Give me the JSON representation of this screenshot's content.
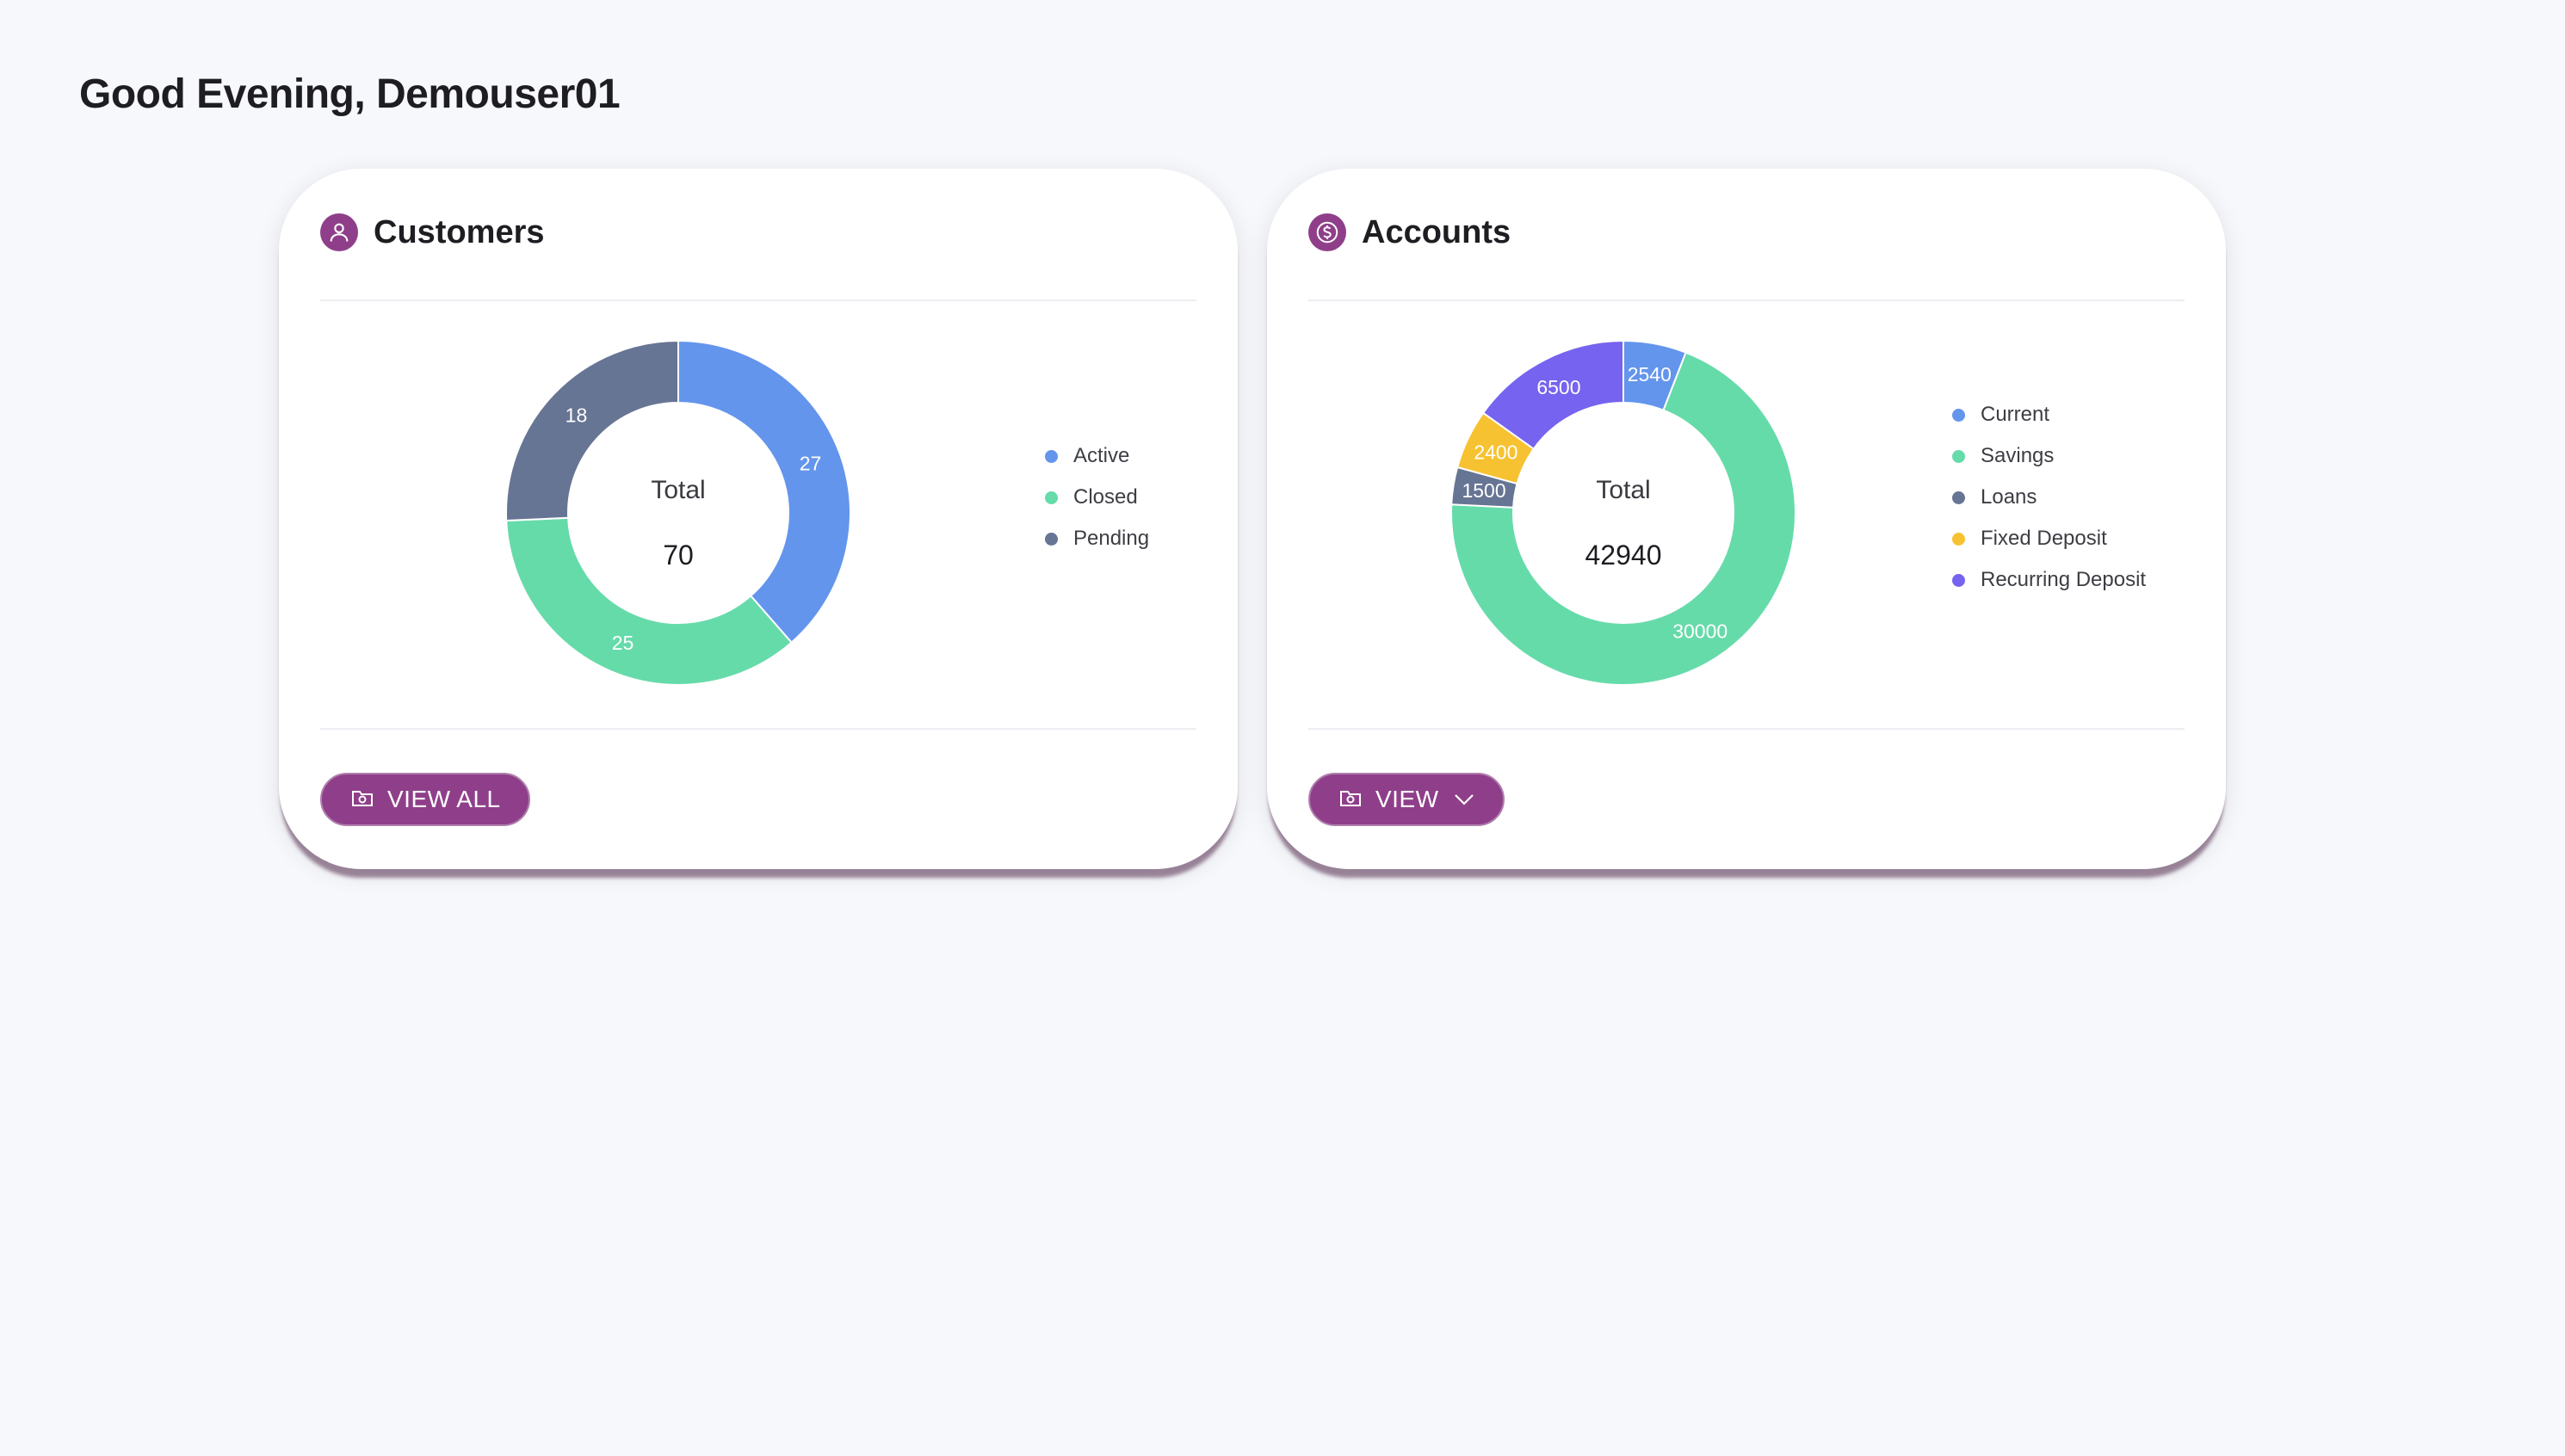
{
  "greeting": "Good Evening, Demouser01",
  "colors": {
    "brand": "#8f3f8a",
    "background": "#f7f8fc",
    "blue": "#6495ed",
    "green": "#66dbaa",
    "slate": "#677594",
    "yellow": "#f7c231",
    "purple": "#7663ef"
  },
  "customers": {
    "title": "Customers",
    "icon": "user-icon",
    "button_icon": "folder-icon",
    "center_label": "Total",
    "total": "70",
    "button_label": "VIEW ALL",
    "legend": [
      {
        "label": "Active",
        "color": "#6495ed"
      },
      {
        "label": "Closed",
        "color": "#66dbaa"
      },
      {
        "label": "Pending",
        "color": "#677594"
      }
    ],
    "chart_data": {
      "type": "donut",
      "categories": [
        "Active",
        "Closed",
        "Pending"
      ],
      "values": [
        27,
        25,
        18
      ],
      "colors": [
        "#6495ed",
        "#66dbaa",
        "#677594"
      ]
    }
  },
  "accounts": {
    "title": "Accounts",
    "icon": "dollar-icon",
    "button_icon": "folder-icon",
    "dropdown_icon": "chevron-down-icon",
    "center_label": "Total",
    "total": "42940",
    "button_label": "VIEW",
    "legend": [
      {
        "label": "Current",
        "color": "#6495ed"
      },
      {
        "label": "Savings",
        "color": "#66dbaa"
      },
      {
        "label": "Loans",
        "color": "#677594"
      },
      {
        "label": "Fixed Deposit",
        "color": "#f7c231"
      },
      {
        "label": "Recurring Deposit",
        "color": "#7663ef"
      }
    ],
    "chart_data": {
      "type": "donut",
      "categories": [
        "Current",
        "Savings",
        "Loans",
        "Fixed Deposit",
        "Recurring Deposit"
      ],
      "values": [
        2540,
        30000,
        1500,
        2400,
        6500
      ],
      "colors": [
        "#6495ed",
        "#66dbaa",
        "#677594",
        "#f7c231",
        "#7663ef"
      ]
    }
  }
}
